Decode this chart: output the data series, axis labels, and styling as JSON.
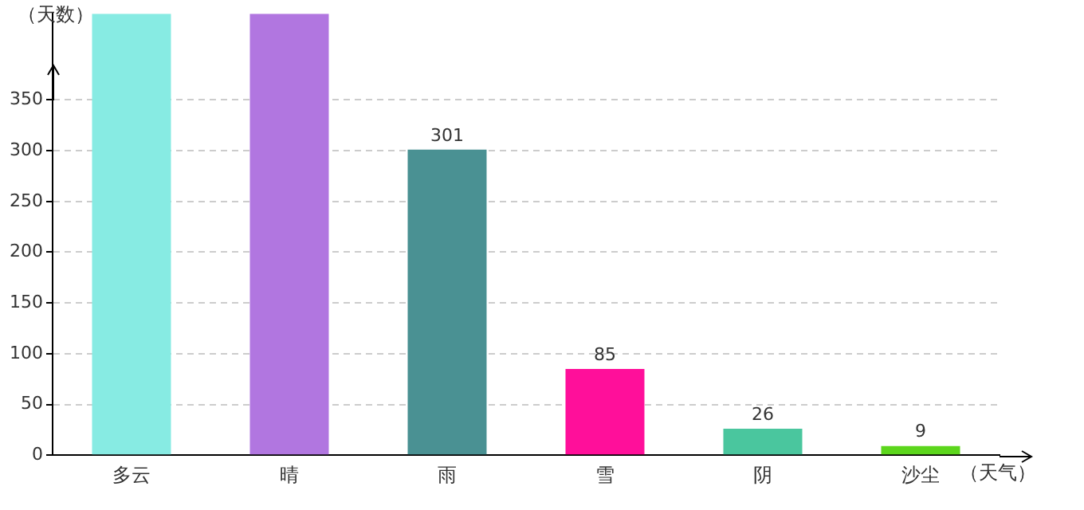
{
  "chart_data": {
    "type": "bar",
    "ylabel": "（天数）",
    "xlabel": "（天气）",
    "categories": [
      "多云",
      "晴",
      "雨",
      "雪",
      "阴",
      "沙尘"
    ],
    "values": [
      435,
      435,
      301,
      85,
      26,
      9
    ],
    "colors": [
      "#87ebe3",
      "#b176e0",
      "#4a9193",
      "#ff0f9a",
      "#4ac69e",
      "#5cd61c"
    ],
    "value_labels": [
      null,
      null,
      "301",
      "85",
      "26",
      "9"
    ],
    "ylim": [
      0,
      435
    ],
    "yticks": [
      0,
      50,
      100,
      150,
      200,
      250,
      300,
      350
    ],
    "grid": "y",
    "legend": false
  }
}
